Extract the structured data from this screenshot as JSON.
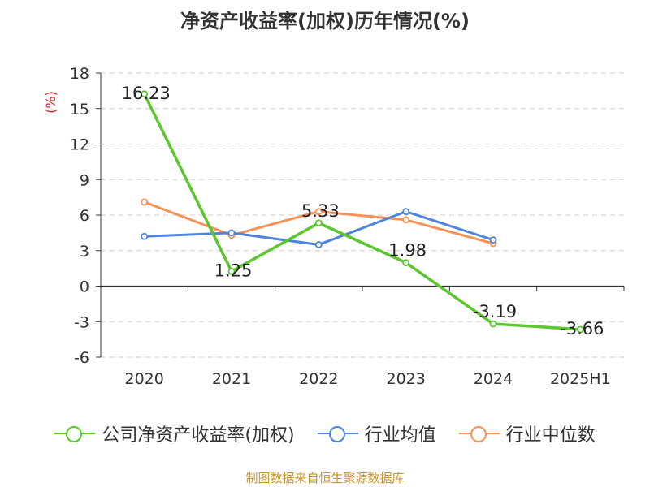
{
  "chart_data": {
    "type": "line",
    "title": "净资产收益率(加权)历年情况(%)",
    "ylabel": "(%)",
    "xlabel": "",
    "categories": [
      "2020",
      "2021",
      "2022",
      "2023",
      "2024",
      "2025H1"
    ],
    "ylim": [
      -6,
      18
    ],
    "yticks": [
      -6,
      -3,
      0,
      3,
      6,
      9,
      12,
      15,
      18
    ],
    "grid": true,
    "legend_position": "bottom",
    "series": [
      {
        "name": "公司净资产收益率(加权)",
        "color": "#5cc72d",
        "values": [
          16.23,
          1.25,
          5.33,
          1.98,
          -3.19,
          -3.66
        ],
        "data_labels": [
          "16.23",
          "1.25",
          "5.33",
          "1.98",
          "-3.19",
          "-3.66"
        ]
      },
      {
        "name": "行业均值",
        "color": "#4f84dc",
        "values": [
          4.2,
          4.5,
          3.5,
          6.3,
          3.9,
          null
        ]
      },
      {
        "name": "行业中位数",
        "color": "#f79359",
        "values": [
          7.1,
          4.3,
          6.3,
          5.6,
          3.6,
          null
        ]
      }
    ]
  },
  "source": "制图数据来自恒生聚源数据库"
}
